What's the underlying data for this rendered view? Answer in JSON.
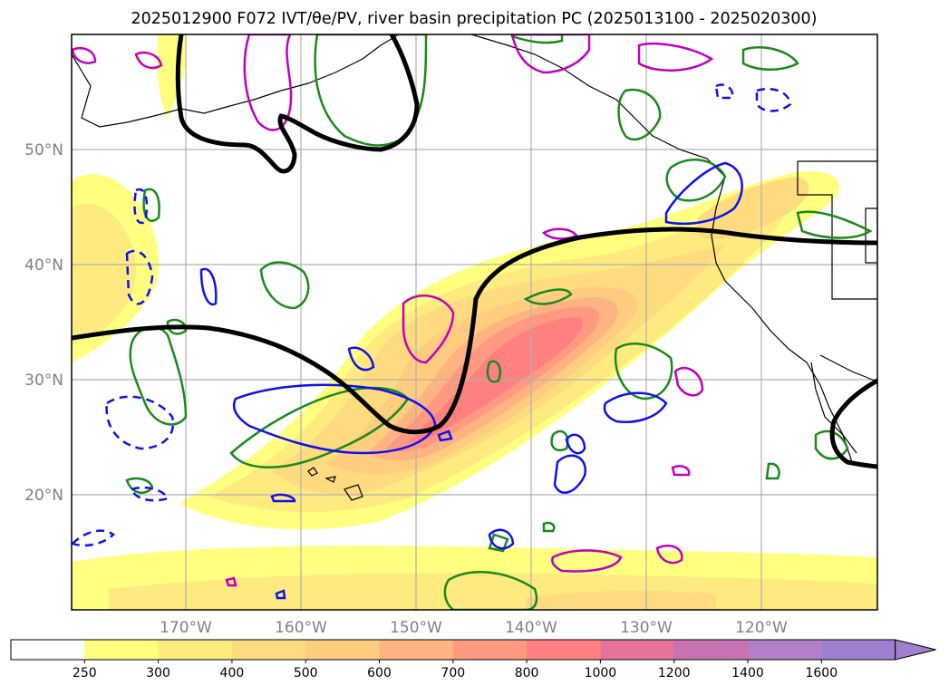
{
  "title": "2025012900 F072 IVT/θe/PV, river basin precipitation PC (2025013100 - 2025020300)",
  "map": {
    "lat_labels": [
      "50°N",
      "40°N",
      "30°N",
      "20°N"
    ],
    "lon_labels": [
      "170°W",
      "160°W",
      "150°W",
      "140°W",
      "130°W",
      "120°W"
    ]
  },
  "colorbar": {
    "levels": [
      "250",
      "300",
      "400",
      "500",
      "600",
      "700",
      "800",
      "1000",
      "1200",
      "1400",
      "1600"
    ],
    "colors": [
      "#ffffff",
      "#ffff80",
      "#ffea80",
      "#ffdb80",
      "#ffcc80",
      "#ffb380",
      "#ff9980",
      "#ff8080",
      "#e57399",
      "#c773b3",
      "#b380c7",
      "#9f80d0"
    ]
  }
}
